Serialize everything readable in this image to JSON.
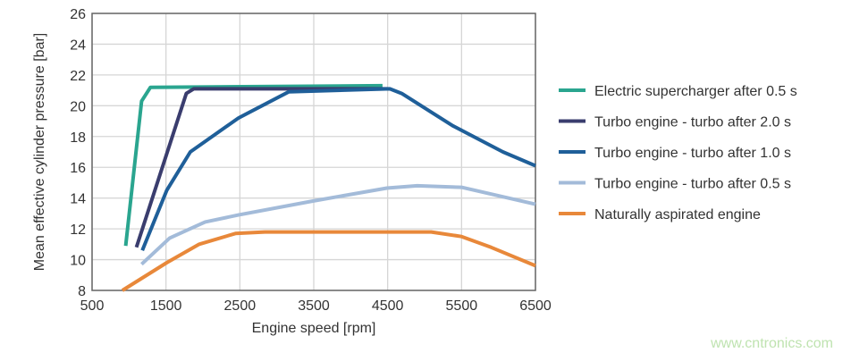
{
  "chart_data": {
    "type": "line",
    "xlabel": "Engine speed [rpm]",
    "ylabel": "Mean effective cylinder pressure [bar]",
    "xlim": [
      500,
      6500
    ],
    "ylim": [
      8,
      26
    ],
    "xticks": [
      "500",
      "1500",
      "2500",
      "3500",
      "4500",
      "5500",
      "6500"
    ],
    "yticks": [
      "8",
      "10",
      "12",
      "14",
      "16",
      "18",
      "20",
      "22",
      "24",
      "26"
    ],
    "grid": true,
    "legend_position": "right",
    "series": [
      {
        "name": "Electric supercharger after 0.5 s",
        "color": "#2aa58f",
        "x": [
          955,
          1170,
          1290,
          4430
        ],
        "y": [
          10.9,
          20.3,
          21.2,
          21.3
        ]
      },
      {
        "name": "Turbo engine - turbo after 2.0 s",
        "color": "#3a3d6e",
        "x": [
          1100,
          1775,
          1875,
          4500
        ],
        "y": [
          10.8,
          20.8,
          21.1,
          21.1
        ]
      },
      {
        "name": "Turbo engine - turbo after 1.0 s",
        "color": "#1f5f99",
        "x": [
          1180,
          1510,
          1830,
          2480,
          3160,
          4530,
          4690,
          5380,
          6060,
          6500
        ],
        "y": [
          10.6,
          14.5,
          17.0,
          19.2,
          20.9,
          21.1,
          20.8,
          18.7,
          17.0,
          16.1
        ]
      },
      {
        "name": "Turbo engine - turbo after 0.5 s",
        "color": "#a3bbd9",
        "x": [
          1170,
          1550,
          2030,
          2480,
          3480,
          4490,
          4900,
          5500,
          6500
        ],
        "y": [
          9.7,
          11.4,
          12.45,
          12.9,
          13.8,
          14.65,
          14.8,
          14.7,
          13.6
        ]
      },
      {
        "name": "Naturally aspirated engine",
        "color": "#e8883a",
        "x": [
          910,
          1510,
          1950,
          2440,
          2840,
          5090,
          5500,
          5900,
          6500
        ],
        "y": [
          8.0,
          9.8,
          11.0,
          11.7,
          11.8,
          11.8,
          11.5,
          10.8,
          9.6
        ]
      }
    ]
  },
  "watermark": "www.cntronics.com"
}
